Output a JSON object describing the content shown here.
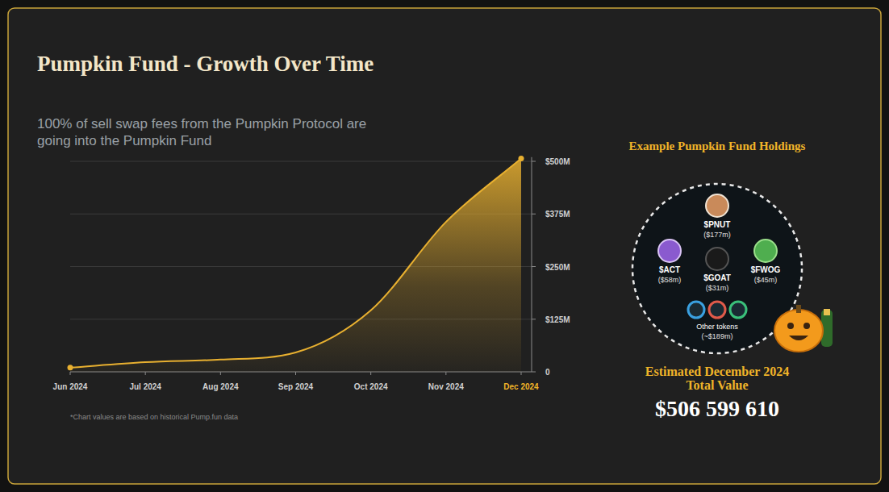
{
  "chart_data": {
    "type": "area",
    "title": "Pumpkin Fund - Growth Over Time",
    "subtitle": "100% of sell swap fees from the Pumpkin Protocol are going into the Pumpkin Fund",
    "annotations": [
      "*Chart values are based on historical Pump.fun data"
    ],
    "categories": [
      "Jun 2024",
      "Jul 2024",
      "Aug 2024",
      "Sep 2024",
      "Oct 2024",
      "Nov 2024",
      "Dec 2024"
    ],
    "values": [
      10,
      23,
      29,
      46,
      146,
      356,
      506.6
    ],
    "color": "#e8b030",
    "ylim": [
      0,
      510
    ],
    "yticks": [
      0,
      {
        "value": 125,
        "label": "$125M"
      },
      {
        "value": 250,
        "label": "$250M"
      },
      {
        "value": 375,
        "label": "$375M"
      },
      {
        "value": 500,
        "label": "$500M"
      }
    ],
    "grid": true
  },
  "panel": {
    "title": "Example Pumpkin Fund Holdings",
    "holdings": [
      {
        "symbol": "$PNUT",
        "amount": "($177m)"
      },
      {
        "symbol": "$ACT",
        "amount": "($58m)"
      },
      {
        "symbol": "$GOAT",
        "amount": "($31m)"
      },
      {
        "symbol": "$FWOG",
        "amount": "($45m)"
      },
      {
        "symbol": "Other tokens",
        "amount": "(~$189m)"
      }
    ],
    "total_label": [
      "Estimated December 2024",
      "Total Value"
    ],
    "total_value": "$506 599 610"
  }
}
